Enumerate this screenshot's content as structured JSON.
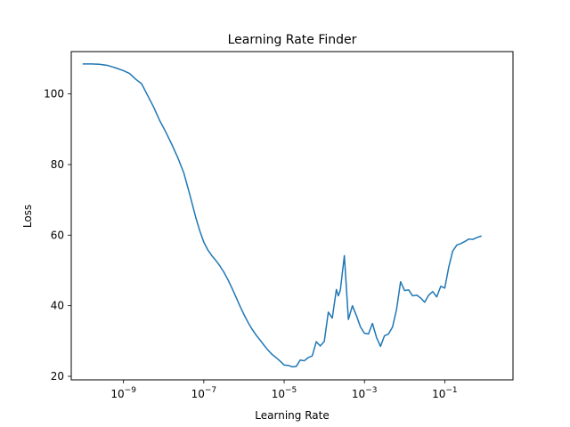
{
  "chart_data": {
    "type": "line",
    "title": "Learning Rate Finder",
    "xlabel": "Learning Rate",
    "ylabel": "Loss",
    "xscale": "log",
    "xlim": [
      5e-11,
      5
    ],
    "ylim": [
      19,
      112
    ],
    "grid": false,
    "legend": "none",
    "xticks": [
      {
        "value": 1e-09,
        "base": "10",
        "exp": "−9"
      },
      {
        "value": 1e-07,
        "base": "10",
        "exp": "−7"
      },
      {
        "value": 1e-05,
        "base": "10",
        "exp": "−5"
      },
      {
        "value": 0.001,
        "base": "10",
        "exp": "−3"
      },
      {
        "value": 0.1,
        "base": "10",
        "exp": "−1"
      }
    ],
    "yticks": [
      {
        "value": 20,
        "label": "20"
      },
      {
        "value": 40,
        "label": "40"
      },
      {
        "value": 60,
        "label": "60"
      },
      {
        "value": 80,
        "label": "80"
      },
      {
        "value": 100,
        "label": "100"
      }
    ],
    "series": [
      {
        "color": "#1f77b4",
        "x": [
          1e-10,
          1.58e-10,
          2.51e-10,
          3.98e-10,
          6.31e-10,
          1e-09,
          1.41e-09,
          2e-09,
          2.82e-09,
          3.98e-09,
          5.62e-09,
          7.94e-09,
          1.12e-08,
          1.58e-08,
          2.24e-08,
          3.16e-08,
          4.47e-08,
          6.31e-08,
          7.94e-08,
          1e-07,
          1.26e-07,
          1.58e-07,
          2e-07,
          2.51e-07,
          3.16e-07,
          3.98e-07,
          5.01e-07,
          6.31e-07,
          7.94e-07,
          1e-06,
          1.26e-06,
          1.58e-06,
          2e-06,
          2.51e-06,
          3.16e-06,
          3.98e-06,
          5.01e-06,
          6.31e-06,
          7.94e-06,
          1e-05,
          1.26e-05,
          1.58e-05,
          2e-05,
          2.51e-05,
          3.16e-05,
          3.98e-05,
          5.01e-05,
          6.31e-05,
          7.94e-05,
          0.0001,
          0.000126,
          0.000158,
          0.0002,
          0.000224,
          0.000251,
          0.000316,
          0.000398,
          0.000501,
          0.000631,
          0.000794,
          0.001,
          0.00126,
          0.00158,
          0.002,
          0.00251,
          0.00316,
          0.00398,
          0.00501,
          0.00631,
          0.00794,
          0.01,
          0.0126,
          0.0158,
          0.02,
          0.0251,
          0.0316,
          0.0398,
          0.0501,
          0.0631,
          0.0794,
          0.1,
          0.126,
          0.158,
          0.2,
          0.251,
          0.316,
          0.398,
          0.501,
          0.631,
          0.794
        ],
        "values": [
          108.5,
          108.5,
          108.4,
          108.1,
          107.4,
          106.6,
          105.8,
          104.2,
          102.9,
          99.6,
          96.3,
          92.5,
          89.3,
          85.8,
          82.0,
          77.7,
          71.5,
          65.0,
          61.2,
          58.0,
          55.8,
          54.2,
          52.8,
          51.3,
          49.5,
          47.4,
          45.0,
          42.5,
          39.9,
          37.5,
          35.3,
          33.4,
          31.7,
          30.3,
          28.8,
          27.4,
          26.2,
          25.3,
          24.3,
          23.2,
          23.1,
          22.7,
          22.8,
          24.6,
          24.4,
          25.3,
          25.8,
          29.8,
          28.6,
          29.9,
          38.2,
          36.5,
          44.6,
          42.8,
          44.4,
          54.2,
          36.1,
          40.0,
          37.2,
          34.0,
          32.2,
          32.0,
          35.0,
          31.0,
          28.5,
          31.5,
          32.0,
          34.0,
          39.0,
          46.8,
          44.3,
          44.5,
          42.8,
          43.0,
          42.2,
          41.0,
          43.0,
          44.0,
          42.5,
          45.5,
          45.0,
          51.0,
          55.5,
          57.2,
          57.6,
          58.2,
          58.9,
          58.8,
          59.3,
          59.7
        ]
      }
    ]
  }
}
